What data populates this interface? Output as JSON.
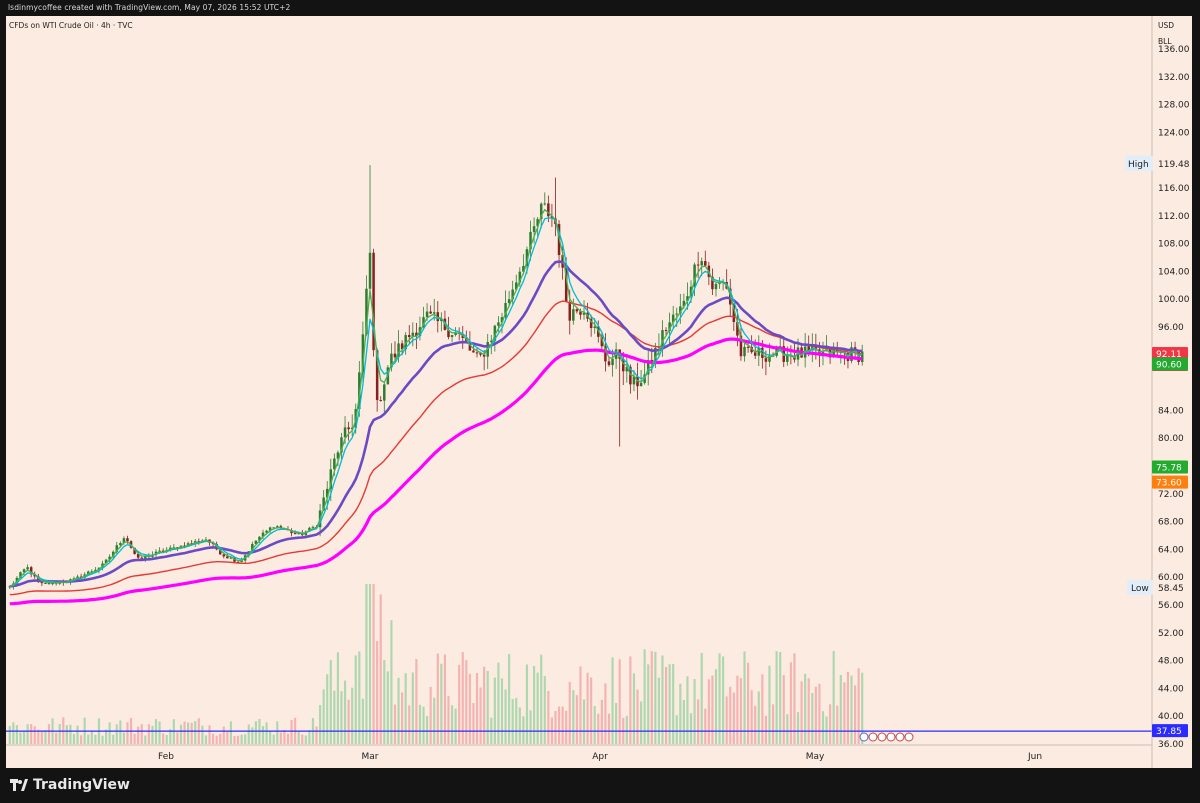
{
  "header": {
    "text": "lsdinmycoffee created with TradingView.com, May 07, 2026 15:52 UTC+2"
  },
  "symbol_line": "CFDs on WTI Crude Oil · 4h · TVC",
  "footer": {
    "brand": "TradingView"
  },
  "colors": {
    "background": "#fbebe0",
    "up": "#2f7d32",
    "down": "#8a1f1f",
    "ema_fast": "#4caf50",
    "ema_mid": "#00bcd4",
    "ma_red": "#e53935",
    "ma_purple": "#6a4bc4",
    "ma_magenta": "#ff00ff",
    "hline": "#2b2bff"
  },
  "chart_data": {
    "type": "candlestick",
    "title": "CFDs on WTI Crude Oil · 4h · TVC",
    "currency": [
      "USD",
      "BLL"
    ],
    "x_ticks": [
      "Feb",
      "Mar",
      "Apr",
      "May",
      "Jun"
    ],
    "y_ticks": [
      36,
      40,
      44,
      48,
      52,
      56,
      60,
      64,
      68,
      72,
      80,
      84,
      96,
      100,
      104,
      108,
      112,
      116,
      124,
      128,
      132,
      136
    ],
    "ylim": [
      34,
      137
    ],
    "high_label": "High",
    "high_value": 119.48,
    "low_label": "Low",
    "low_value": 58.45,
    "price_tags": [
      {
        "value": "92.11",
        "sub": "07:49",
        "color": "#f23645"
      },
      {
        "value": "90.60",
        "color": "#22ab2e"
      },
      {
        "value": "75.78",
        "color": "#22ab2e"
      },
      {
        "value": "73.60",
        "color": "#ff7f0e"
      },
      {
        "value": "37.85",
        "color": "#2b2bff"
      }
    ],
    "horizontal_line": 37.85,
    "price_anchors": [
      {
        "t": 0,
        "p": 58.6
      },
      {
        "t": 0.02,
        "p": 61.5
      },
      {
        "t": 0.035,
        "p": 58.9
      },
      {
        "t": 0.075,
        "p": 59.6
      },
      {
        "t": 0.11,
        "p": 61.8
      },
      {
        "t": 0.135,
        "p": 66.0
      },
      {
        "t": 0.15,
        "p": 62.5
      },
      {
        "t": 0.175,
        "p": 63.6
      },
      {
        "t": 0.21,
        "p": 64.8
      },
      {
        "t": 0.23,
        "p": 65.5
      },
      {
        "t": 0.25,
        "p": 63.2
      },
      {
        "t": 0.27,
        "p": 62.2
      },
      {
        "t": 0.29,
        "p": 65.5
      },
      {
        "t": 0.31,
        "p": 67.5
      },
      {
        "t": 0.34,
        "p": 66.0
      },
      {
        "t": 0.36,
        "p": 67.5
      },
      {
        "t": 0.385,
        "p": 78.5
      },
      {
        "t": 0.405,
        "p": 83.0
      },
      {
        "t": 0.415,
        "p": 95.0
      },
      {
        "t": 0.422,
        "p": 108.0
      },
      {
        "t": 0.43,
        "p": 84.0
      },
      {
        "t": 0.445,
        "p": 91.0
      },
      {
        "t": 0.47,
        "p": 95.0
      },
      {
        "t": 0.49,
        "p": 97.5
      },
      {
        "t": 0.525,
        "p": 95.0
      },
      {
        "t": 0.55,
        "p": 91.0
      },
      {
        "t": 0.58,
        "p": 98.5
      },
      {
        "t": 0.605,
        "p": 106.5
      },
      {
        "t": 0.625,
        "p": 113.5
      },
      {
        "t": 0.64,
        "p": 111.0
      },
      {
        "t": 0.655,
        "p": 98.0
      },
      {
        "t": 0.675,
        "p": 99.0
      },
      {
        "t": 0.7,
        "p": 91.0
      },
      {
        "t": 0.715,
        "p": 92.0
      },
      {
        "t": 0.73,
        "p": 87.5
      },
      {
        "t": 0.745,
        "p": 89.0
      },
      {
        "t": 0.77,
        "p": 96.0
      },
      {
        "t": 0.79,
        "p": 99.0
      },
      {
        "t": 0.81,
        "p": 107.0
      },
      {
        "t": 0.825,
        "p": 101.5
      },
      {
        "t": 0.84,
        "p": 102.5
      },
      {
        "t": 0.85,
        "p": 96.5
      },
      {
        "t": 0.858,
        "p": 92.1
      }
    ]
  }
}
